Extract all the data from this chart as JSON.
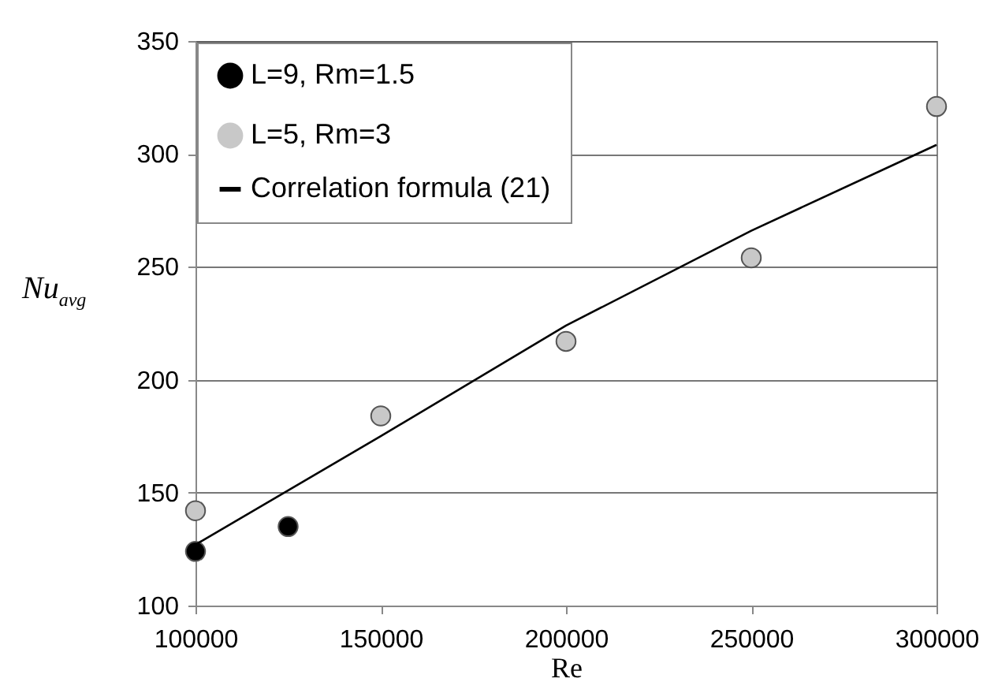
{
  "chart_data": {
    "type": "scatter",
    "xlabel": "Re",
    "ylabel": "Nu$_{avg}$",
    "xlim": [
      100000,
      300000
    ],
    "xticks": [
      100000,
      150000,
      200000,
      250000,
      300000
    ],
    "ylim": [
      100,
      350
    ],
    "yticks": [
      100,
      150,
      200,
      250,
      300,
      350
    ],
    "grid": "y",
    "legend": "top left",
    "series": [
      {
        "name": "L=9, Rm=1.5",
        "color": "#000000",
        "marker": "circle",
        "x": [
          100000,
          125000
        ],
        "values": [
          124,
          135
        ]
      },
      {
        "name": "L=5, Rm=3",
        "color": "#c8c8c8",
        "marker": "circle",
        "x": [
          100000,
          150000,
          200000,
          250000,
          300000
        ],
        "values": [
          142,
          184,
          217,
          254,
          321
        ]
      },
      {
        "name": "Correlation formula (21)",
        "type": "line",
        "color": "#000000",
        "x": [
          100000,
          150000,
          200000,
          250000,
          300000
        ],
        "values": [
          127,
          175,
          224,
          266,
          304
        ]
      }
    ]
  }
}
